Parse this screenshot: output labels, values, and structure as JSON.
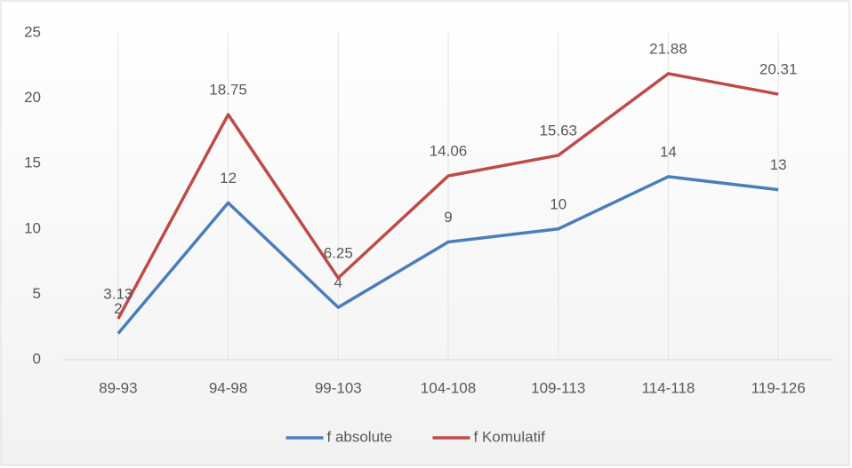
{
  "chart_data": {
    "type": "line",
    "categories": [
      "89-93",
      "94-98",
      "99-103",
      "104-108",
      "109-113",
      "114-118",
      "119-126"
    ],
    "series": [
      {
        "name": "f absolute",
        "color": "#4a7ebb",
        "values": [
          2,
          12,
          4,
          9,
          10,
          14,
          13
        ]
      },
      {
        "name": "f Komulatif",
        "color": "#be4b48",
        "values": [
          3.13,
          18.75,
          6.25,
          14.06,
          15.63,
          21.88,
          20.31
        ]
      }
    ],
    "ylim": [
      0,
      25
    ],
    "yticks": [
      0,
      5,
      10,
      15,
      20,
      25
    ],
    "grid": false,
    "legend": "bottom"
  }
}
